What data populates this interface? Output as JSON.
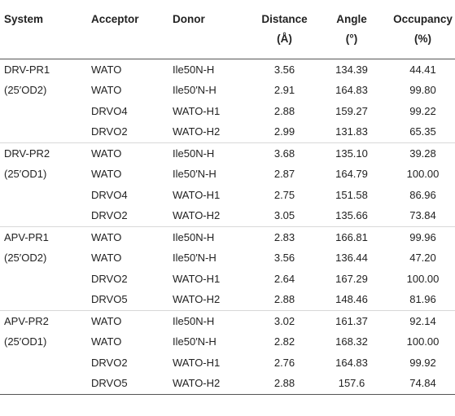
{
  "headers": {
    "system": "System",
    "acceptor": "Acceptor",
    "donor": "Donor",
    "distance": "Distance",
    "distance_unit": "(Å)",
    "angle": "Angle",
    "angle_unit": "(°)",
    "occupancy": "Occupancy",
    "occupancy_unit": "(%)"
  },
  "groups": [
    {
      "system": "DRV-PR1",
      "system_sub": "(25′OD2)",
      "rows": [
        {
          "acceptor": "WATO",
          "donor": "Ile50N-H",
          "distance": "3.56",
          "angle": "134.39",
          "occupancy": "44.41"
        },
        {
          "acceptor": "WATO",
          "donor": "Ile50′N-H",
          "distance": "2.91",
          "angle": "164.83",
          "occupancy": "99.80"
        },
        {
          "acceptor": "DRVO4",
          "donor": "WATO-H1",
          "distance": "2.88",
          "angle": "159.27",
          "occupancy": "99.22"
        },
        {
          "acceptor": "DRVO2",
          "donor": "WATO-H2",
          "distance": "2.99",
          "angle": "131.83",
          "occupancy": "65.35"
        }
      ]
    },
    {
      "system": "DRV-PR2",
      "system_sub": "(25′OD1)",
      "rows": [
        {
          "acceptor": "WATO",
          "donor": "Ile50N-H",
          "distance": "3.68",
          "angle": "135.10",
          "occupancy": "39.28"
        },
        {
          "acceptor": "WATO",
          "donor": "Ile50′N-H",
          "distance": "2.87",
          "angle": "164.79",
          "occupancy": "100.00"
        },
        {
          "acceptor": "DRVO4",
          "donor": "WATO-H1",
          "distance": "2.75",
          "angle": "151.58",
          "occupancy": "86.96"
        },
        {
          "acceptor": "DRVO2",
          "donor": "WATO-H2",
          "distance": "3.05",
          "angle": "135.66",
          "occupancy": "73.84"
        }
      ]
    },
    {
      "system": "APV-PR1",
      "system_sub": "(25′OD2)",
      "rows": [
        {
          "acceptor": "WATO",
          "donor": "Ile50N-H",
          "distance": "2.83",
          "angle": "166.81",
          "occupancy": "99.96"
        },
        {
          "acceptor": "WATO",
          "donor": "Ile50′N-H",
          "distance": "3.56",
          "angle": "136.44",
          "occupancy": "47.20"
        },
        {
          "acceptor": "DRVO2",
          "donor": "WATO-H1",
          "distance": "2.64",
          "angle": "167.29",
          "occupancy": "100.00"
        },
        {
          "acceptor": "DRVO5",
          "donor": "WATO-H2",
          "distance": "2.88",
          "angle": "148.46",
          "occupancy": "81.96"
        }
      ]
    },
    {
      "system": "APV-PR2",
      "system_sub": "(25′OD1)",
      "rows": [
        {
          "acceptor": "WATO",
          "donor": "Ile50N-H",
          "distance": "3.02",
          "angle": "161.37",
          "occupancy": "92.14"
        },
        {
          "acceptor": "WATO",
          "donor": "Ile50′N-H",
          "distance": "2.82",
          "angle": "168.32",
          "occupancy": "100.00"
        },
        {
          "acceptor": "DRVO2",
          "donor": "WATO-H1",
          "distance": "2.76",
          "angle": "164.83",
          "occupancy": "99.92"
        },
        {
          "acceptor": "DRVO5",
          "donor": "WATO-H2",
          "distance": "2.88",
          "angle": "157.6",
          "occupancy": "74.84"
        }
      ]
    }
  ]
}
